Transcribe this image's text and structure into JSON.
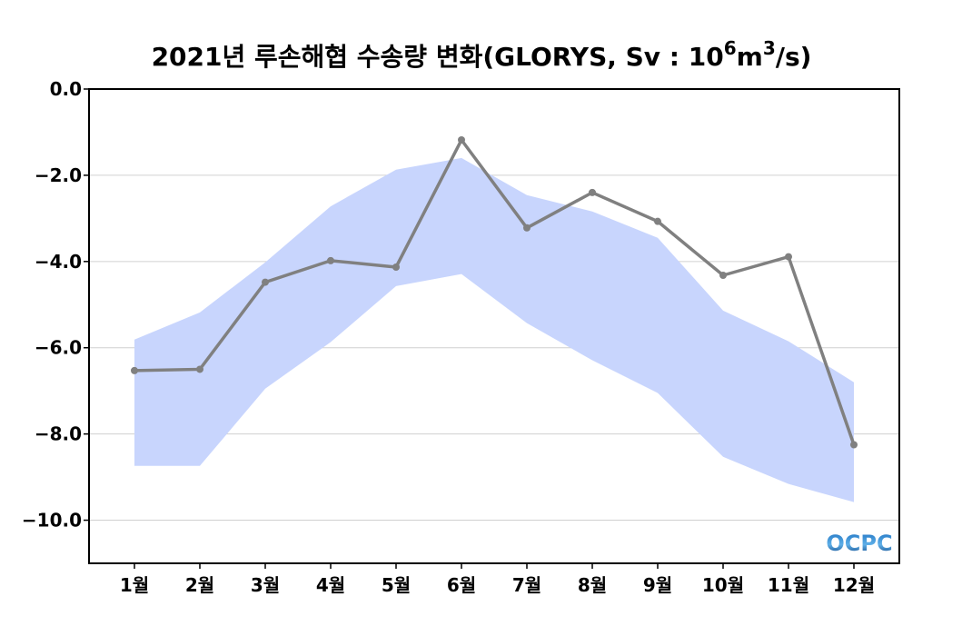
{
  "chart_data": {
    "type": "line",
    "title_main": "2021년 루손해협 수송량 변화(GLORYS, Sv : 10",
    "title_sup1": "6",
    "title_mid": "m",
    "title_sup2": "3",
    "title_end": "/s)",
    "categories": [
      "1월",
      "2월",
      "3월",
      "4월",
      "5월",
      "6월",
      "7월",
      "8월",
      "9월",
      "10월",
      "11월",
      "12월"
    ],
    "ylim": [
      -11,
      0
    ],
    "yticks": [
      0,
      -2,
      -4,
      -6,
      -8,
      -10
    ],
    "ytick_labels": [
      "0.0",
      "−2.0",
      "−4.0",
      "−6.0",
      "−8.0",
      "−10.0"
    ],
    "grid": "horizontal",
    "series": [
      {
        "values": [
          -6.53,
          -6.5,
          -4.48,
          -3.98,
          -4.13,
          -1.18,
          -3.22,
          -2.4,
          -3.07,
          -4.32,
          -3.89,
          -8.25
        ],
        "color": "#808080"
      }
    ],
    "band": {
      "upper": [
        -5.81,
        -5.18,
        -4.02,
        -2.72,
        -1.87,
        -1.6,
        -2.46,
        -2.84,
        -3.45,
        -5.14,
        -5.85,
        -6.8
      ],
      "lower": [
        -8.74,
        -8.74,
        -6.95,
        -5.87,
        -4.57,
        -4.29,
        -5.43,
        -6.29,
        -7.05,
        -8.53,
        -9.16,
        -9.58
      ],
      "color": "#c8d5fd"
    },
    "logo": "OCPC"
  }
}
